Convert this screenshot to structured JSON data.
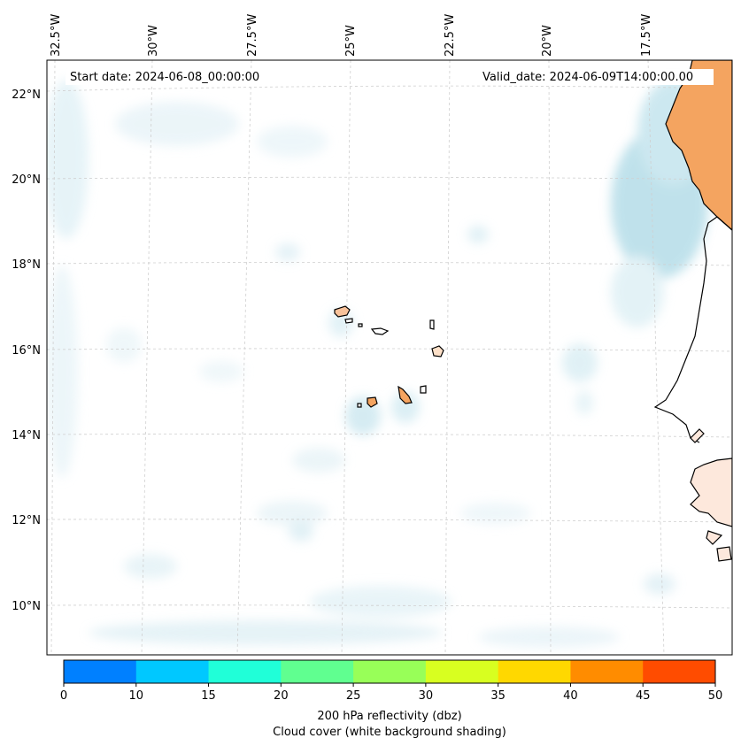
{
  "header": {
    "start_date": "Start date: 2024-06-08_00:00:00",
    "valid_date": "Valid_date: 2024-06-09T14:00:00.00"
  },
  "longitude_labels": [
    "32.5°W",
    "30°W",
    "27.5°W",
    "25°W",
    "22.5°W",
    "20°W",
    "17.5°W"
  ],
  "latitude_labels": [
    "22°N",
    "20°N",
    "18°N",
    "16°N",
    "14°N",
    "12°N",
    "10°N"
  ],
  "colorbar": {
    "label_line1": "200 hPa reflectivity (dbz)",
    "label_line2": "Cloud cover (white background shading)",
    "ticks": [
      "0",
      "10",
      "15",
      "20",
      "25",
      "30",
      "35",
      "40",
      "45",
      "50"
    ],
    "colors": [
      "#0080ff",
      "#00c8ff",
      "#20ffd8",
      "#60ff90",
      "#98ff58",
      "#d8ff20",
      "#ffd800",
      "#ff8c00",
      "#ff4c00"
    ]
  },
  "map": {
    "land_color": "#f4a460",
    "ocean_color": "#ffffff",
    "cloud_color": "#add8e6",
    "coast_color": "#000000",
    "grid_color": "#cccccc"
  }
}
